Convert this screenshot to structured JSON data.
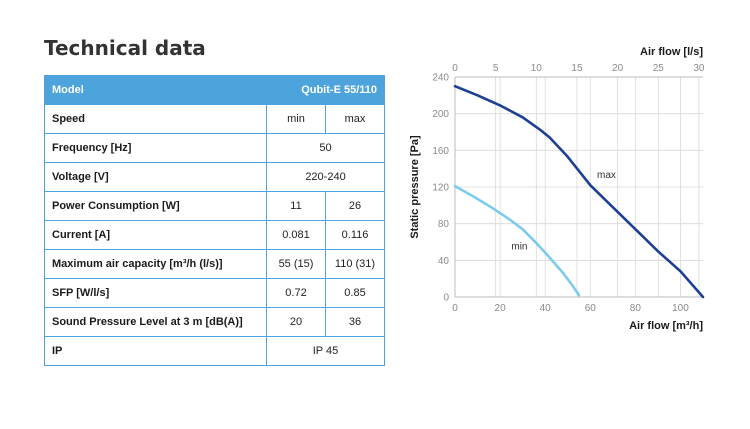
{
  "title": "Technical data",
  "table": {
    "header": {
      "model_label": "Model",
      "product": "Qubit-E 55/110"
    },
    "rows": [
      {
        "label": "Speed",
        "values": [
          "min",
          "max"
        ]
      },
      {
        "label": "Frequency [Hz]",
        "values": [
          "50"
        ]
      },
      {
        "label": "Voltage [V]",
        "values": [
          "220-240"
        ]
      },
      {
        "label": "Power Consumption [W]",
        "values": [
          "11",
          "26"
        ]
      },
      {
        "label": "Current [A]",
        "values": [
          "0.081",
          "0.116"
        ]
      },
      {
        "label": "Maximum air capacity [m³/h (l/s)]",
        "values": [
          "55 (15)",
          "110 (31)"
        ]
      },
      {
        "label": "SFP [W/l/s]",
        "values": [
          "0.72",
          "0.85"
        ]
      },
      {
        "label": "Sound Pressure Level at 3 m [dB(A)]",
        "values": [
          "20",
          "36"
        ]
      },
      {
        "label": "IP",
        "values": [
          "IP 45"
        ]
      }
    ]
  },
  "chart_data": {
    "type": "line",
    "ylabel": "Static pressure [Pa]",
    "xlabel": "Air flow [m³/h]",
    "x2label": "Air flow [l/s]",
    "xlim": [
      0,
      110
    ],
    "ylim": [
      0,
      240
    ],
    "x2lim": [
      0,
      30.5
    ],
    "xticks": [
      0,
      20,
      40,
      60,
      80,
      100
    ],
    "yticks": [
      0,
      40,
      80,
      120,
      160,
      200,
      240
    ],
    "x2ticks": [
      0,
      5,
      10,
      15,
      20,
      25,
      30
    ],
    "grid": true,
    "line_colors": {
      "max": "#1c3f94",
      "min": "#7ccbee"
    },
    "series": [
      {
        "name": "max",
        "x": [
          0,
          10,
          20,
          30,
          38,
          42,
          50,
          60,
          70,
          80,
          90,
          100,
          110
        ],
        "y": [
          230,
          220,
          209,
          196,
          182,
          174,
          153,
          122,
          98,
          74,
          50,
          28,
          0
        ]
      },
      {
        "name": "min",
        "x": [
          0,
          8,
          16,
          24,
          30,
          36,
          42,
          48,
          52,
          55
        ],
        "y": [
          121,
          110,
          98,
          85,
          74,
          59,
          43,
          26,
          13,
          2
        ]
      }
    ]
  }
}
